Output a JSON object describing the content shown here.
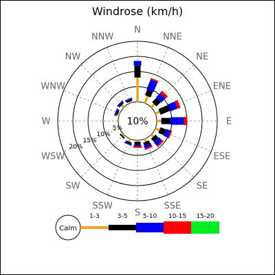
{
  "chart_data": {
    "type": "windrose",
    "title": "Windrose (km/h)",
    "directions": [
      "N",
      "NNE",
      "NE",
      "ENE",
      "E",
      "ESE",
      "SE",
      "SSE",
      "S",
      "SSW",
      "SW",
      "WSW",
      "W",
      "WNW",
      "NW",
      "NNW"
    ],
    "ring_labels": [
      "5%",
      "10%",
      "15%",
      "20%"
    ],
    "calm_label": "Calm",
    "calm_value": "10%",
    "speed_bins": [
      "1-3",
      "3-5",
      "5-10",
      "10-15",
      "15-20"
    ],
    "bin_colors": [
      "#f5a31a",
      "#000000",
      "#0000ee",
      "#ff0000",
      "#00ee22"
    ],
    "frequencies": {
      "N": [
        8.0,
        4.0,
        1.5,
        0.0,
        0.0
      ],
      "NNE": [
        2.5,
        2.0,
        3.5,
        0.5,
        0.0
      ],
      "NE": [
        1.5,
        2.0,
        2.0,
        1.0,
        0.0
      ],
      "ENE": [
        1.5,
        3.5,
        2.5,
        1.0,
        0.0
      ],
      "E": [
        1.5,
        3.0,
        4.5,
        1.0,
        0.0
      ],
      "ESE": [
        1.5,
        2.0,
        1.5,
        0.5,
        0.0
      ],
      "SE": [
        1.0,
        1.5,
        1.5,
        0.5,
        0.0
      ],
      "SSE": [
        1.0,
        1.0,
        1.0,
        0.5,
        0.0
      ],
      "S": [
        0.5,
        1.0,
        0.5,
        0.5,
        0.0
      ],
      "SSW": [
        1.0,
        0.5,
        0.5,
        0.0,
        0.0
      ],
      "SW": [
        0.5,
        0.5,
        0.0,
        0.0,
        0.0
      ],
      "WSW": [
        0.5,
        0.0,
        0.0,
        0.0,
        0.0
      ],
      "W": [
        0.5,
        0.0,
        0.0,
        0.0,
        0.0
      ],
      "WNW": [
        0.5,
        0.5,
        0.5,
        0.0,
        0.0
      ],
      "NW": [
        1.0,
        0.5,
        0.5,
        0.0,
        0.0
      ],
      "NNW": [
        0.5,
        0.5,
        0.5,
        0.0,
        0.0
      ]
    }
  }
}
